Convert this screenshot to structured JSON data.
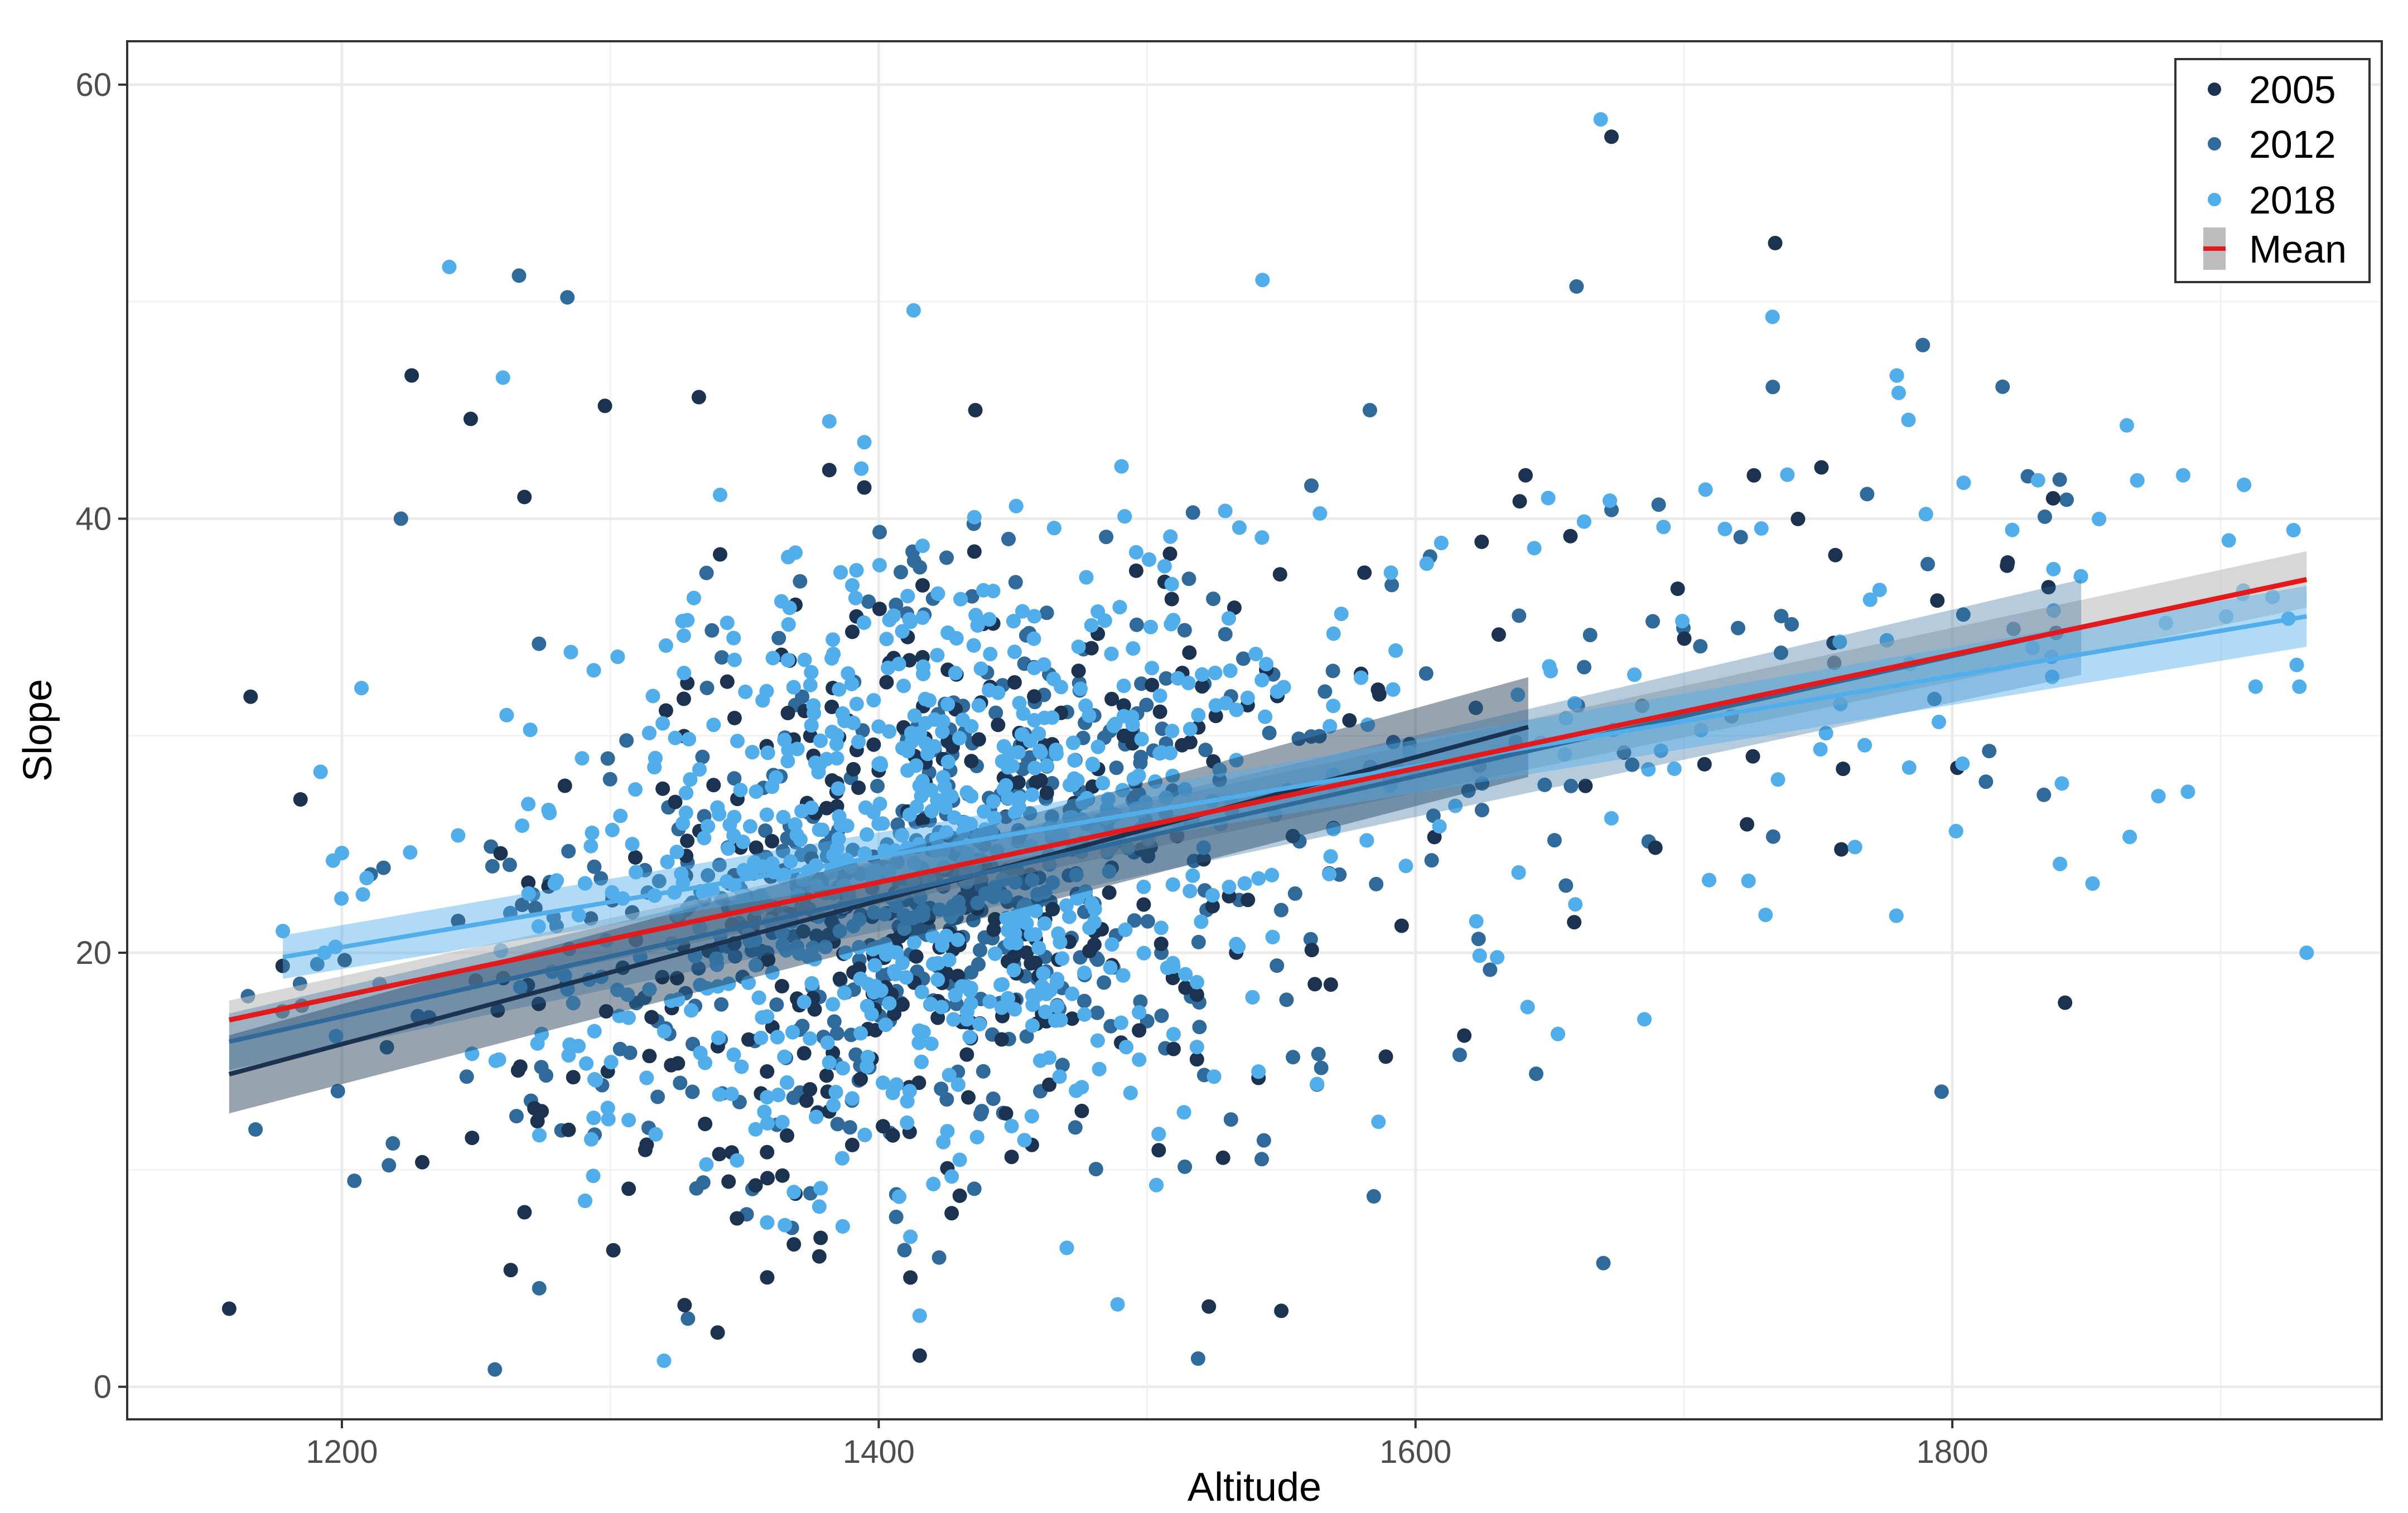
{
  "chart_data": {
    "type": "scatter",
    "xlabel": "Altitude",
    "ylabel": "Slope",
    "xlim": [
      1120,
      1960
    ],
    "ylim": [
      -1.5,
      62
    ],
    "x_ticks": [
      1200,
      1400,
      1600,
      1800
    ],
    "y_ticks": [
      0,
      20,
      40,
      60
    ],
    "x_tick_labels": [
      "1200",
      "1400",
      "1600",
      "1800"
    ],
    "y_tick_labels": [
      "0",
      "20",
      "40",
      "60"
    ],
    "grid": true,
    "legend_position": "top-right",
    "colors": {
      "2005": "#1b3350",
      "2012": "#2f6a9a",
      "2018": "#52aeea",
      "Mean": "#e31a1c",
      "mean_band": "#bdbdbd"
    },
    "series": [
      {
        "name": "2005",
        "approx_point_count": 450,
        "x_range": [
          1158,
          1842
        ],
        "sample_points": [
          [
            1158,
            3.6
          ],
          [
            1166,
            31.8
          ],
          [
            1226,
            46.6
          ],
          [
            1248,
            44.6
          ],
          [
            1268,
            41
          ],
          [
            1298,
            45.2
          ],
          [
            1333,
            45.6
          ],
          [
            1340,
            2.5
          ],
          [
            1436,
            45
          ],
          [
            1523,
            3.7
          ],
          [
            1550,
            3.5
          ],
          [
            1641,
            42
          ],
          [
            1673,
            57.6
          ],
          [
            1734,
            52.7
          ],
          [
            1842,
            17.7
          ]
        ],
        "trend": {
          "x": [
            1158,
            1642
          ],
          "y": [
            14.4,
            30.4
          ],
          "ci_halfwidth_ends": [
            1.8,
            2.3
          ]
        }
      },
      {
        "name": "2012",
        "approx_point_count": 520,
        "x_range": [
          1165,
          1850
        ],
        "sample_points": [
          [
            1165,
            18
          ],
          [
            1222,
            40
          ],
          [
            1266,
            51.2
          ],
          [
            1284,
            50.2
          ],
          [
            1257,
            0.8
          ],
          [
            1519,
            1.3
          ],
          [
            1583,
            45
          ],
          [
            1660,
            50.7
          ],
          [
            1670,
            5.7
          ],
          [
            1789,
            48
          ],
          [
            1796,
            13.6
          ],
          [
            1840,
            41.8
          ]
        ],
        "trend": {
          "x": [
            1158,
            1848
          ],
          "y": [
            15.9,
            35
          ],
          "ci_halfwidth_ends": [
            1.3,
            2.2
          ]
        }
      },
      {
        "name": "2018",
        "approx_point_count": 1400,
        "x_range": [
          1178,
          1932
        ],
        "sample_points": [
          [
            1178,
            21
          ],
          [
            1240,
            51.6
          ],
          [
            1260,
            46.5
          ],
          [
            1320,
            1.2
          ],
          [
            1413,
            49.6
          ],
          [
            1489,
            3.8
          ],
          [
            1543,
            51
          ],
          [
            1669,
            58.4
          ],
          [
            1733,
            49.3
          ],
          [
            1780,
            45.8
          ],
          [
            1865,
            44.3
          ],
          [
            1886,
            42
          ],
          [
            1903,
            39
          ],
          [
            1932,
            20
          ]
        ],
        "trend": {
          "x": [
            1178,
            1932
          ],
          "y": [
            19.8,
            35.5
          ],
          "ci_halfwidth_ends": [
            1.0,
            1.4
          ]
        }
      },
      {
        "name": "Mean",
        "type": "line",
        "x": [
          1158,
          1932
        ],
        "y": [
          16.9,
          37.2
        ],
        "ci_halfwidth_ends": [
          0.9,
          1.3
        ]
      }
    ]
  }
}
